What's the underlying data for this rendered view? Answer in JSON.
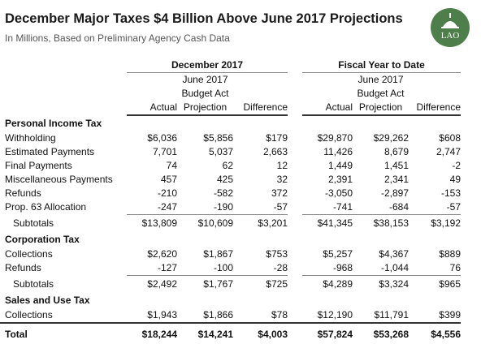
{
  "header": {
    "title": "December Major Taxes $4 Billion Above June 2017 Projections",
    "subtitle": "In Millions, Based on Preliminary Agency Cash Data",
    "logo_text": "LAO"
  },
  "table": {
    "group_headers": {
      "december": "December 2017",
      "fytd": "Fiscal Year to Date"
    },
    "col_headers": {
      "actual": "Actual",
      "proj_l1": "June 2017",
      "proj_l2": "Budget Act",
      "proj_l3": "Projection",
      "diff": "Difference"
    },
    "sections": {
      "pit": {
        "title": "Personal Income Tax",
        "rows": [
          {
            "label": "Withholding",
            "v": [
              "$6,036",
              "$5,856",
              "$179",
              "$29,870",
              "$29,262",
              "$608"
            ]
          },
          {
            "label": "Estimated Payments",
            "v": [
              "7,701",
              "5,037",
              "2,663",
              "11,426",
              "8,679",
              "2,747"
            ]
          },
          {
            "label": "Final Payments",
            "v": [
              "74",
              "62",
              "12",
              "1,449",
              "1,451",
              "-2"
            ]
          },
          {
            "label": "Miscellaneous Payments",
            "v": [
              "457",
              "425",
              "32",
              "2,391",
              "2,341",
              "49"
            ]
          },
          {
            "label": "Refunds",
            "v": [
              "-210",
              "-582",
              "372",
              "-3,050",
              "-2,897",
              "-153"
            ]
          },
          {
            "label": "Prop. 63 Allocation",
            "v": [
              "-247",
              "-190",
              "-57",
              "-741",
              "-684",
              "-57"
            ]
          }
        ],
        "subtotal": {
          "label": "Subtotals",
          "v": [
            "$13,809",
            "$10,609",
            "$3,201",
            "$41,345",
            "$38,153",
            "$3,192"
          ]
        }
      },
      "corp": {
        "title": "Corporation Tax",
        "rows": [
          {
            "label": "Collections",
            "v": [
              "$2,620",
              "$1,867",
              "$753",
              "$5,257",
              "$4,367",
              "$889"
            ]
          },
          {
            "label": "Refunds",
            "v": [
              "-127",
              "-100",
              "-28",
              "-968",
              "-1,044",
              "76"
            ]
          }
        ],
        "subtotal": {
          "label": "Subtotals",
          "v": [
            "$2,492",
            "$1,767",
            "$725",
            "$4,289",
            "$3,324",
            "$965"
          ]
        }
      },
      "sales": {
        "title": "Sales and Use Tax",
        "rows": [
          {
            "label": "Collections",
            "v": [
              "$1,943",
              "$1,866",
              "$78",
              "$12,190",
              "$11,791",
              "$399"
            ]
          }
        ]
      }
    },
    "total": {
      "label": "Total",
      "v": [
        "$18,244",
        "$14,241",
        "$4,003",
        "$57,824",
        "$53,268",
        "$4,556"
      ]
    }
  }
}
